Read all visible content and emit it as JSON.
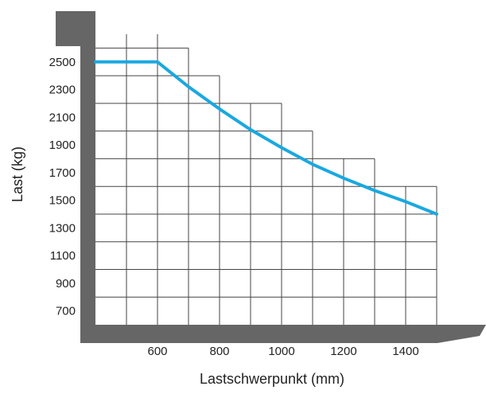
{
  "chart_data": {
    "type": "line",
    "title": "",
    "xlabel": "Lastschwerpunkt (mm)",
    "ylabel": "Last (kg)",
    "xlim": [
      400,
      1500
    ],
    "ylim": [
      600,
      2700
    ],
    "x_ticks": [
      600,
      800,
      1000,
      1200,
      1400
    ],
    "y_ticks": [
      700,
      900,
      1100,
      1300,
      1500,
      1700,
      1900,
      2100,
      2300,
      2500
    ],
    "grid": true,
    "series": [
      {
        "color": "#1aa8e0",
        "x": [
          400,
          600,
          700,
          800,
          900,
          1000,
          1100,
          1200,
          1300,
          1400,
          1500
        ],
        "y": [
          2500,
          2500,
          2320,
          2160,
          2010,
          1880,
          1760,
          1660,
          1570,
          1490,
          1400
        ]
      }
    ],
    "colors": {
      "frame": "#666666",
      "grid": "#444444",
      "text": "#222222"
    }
  }
}
